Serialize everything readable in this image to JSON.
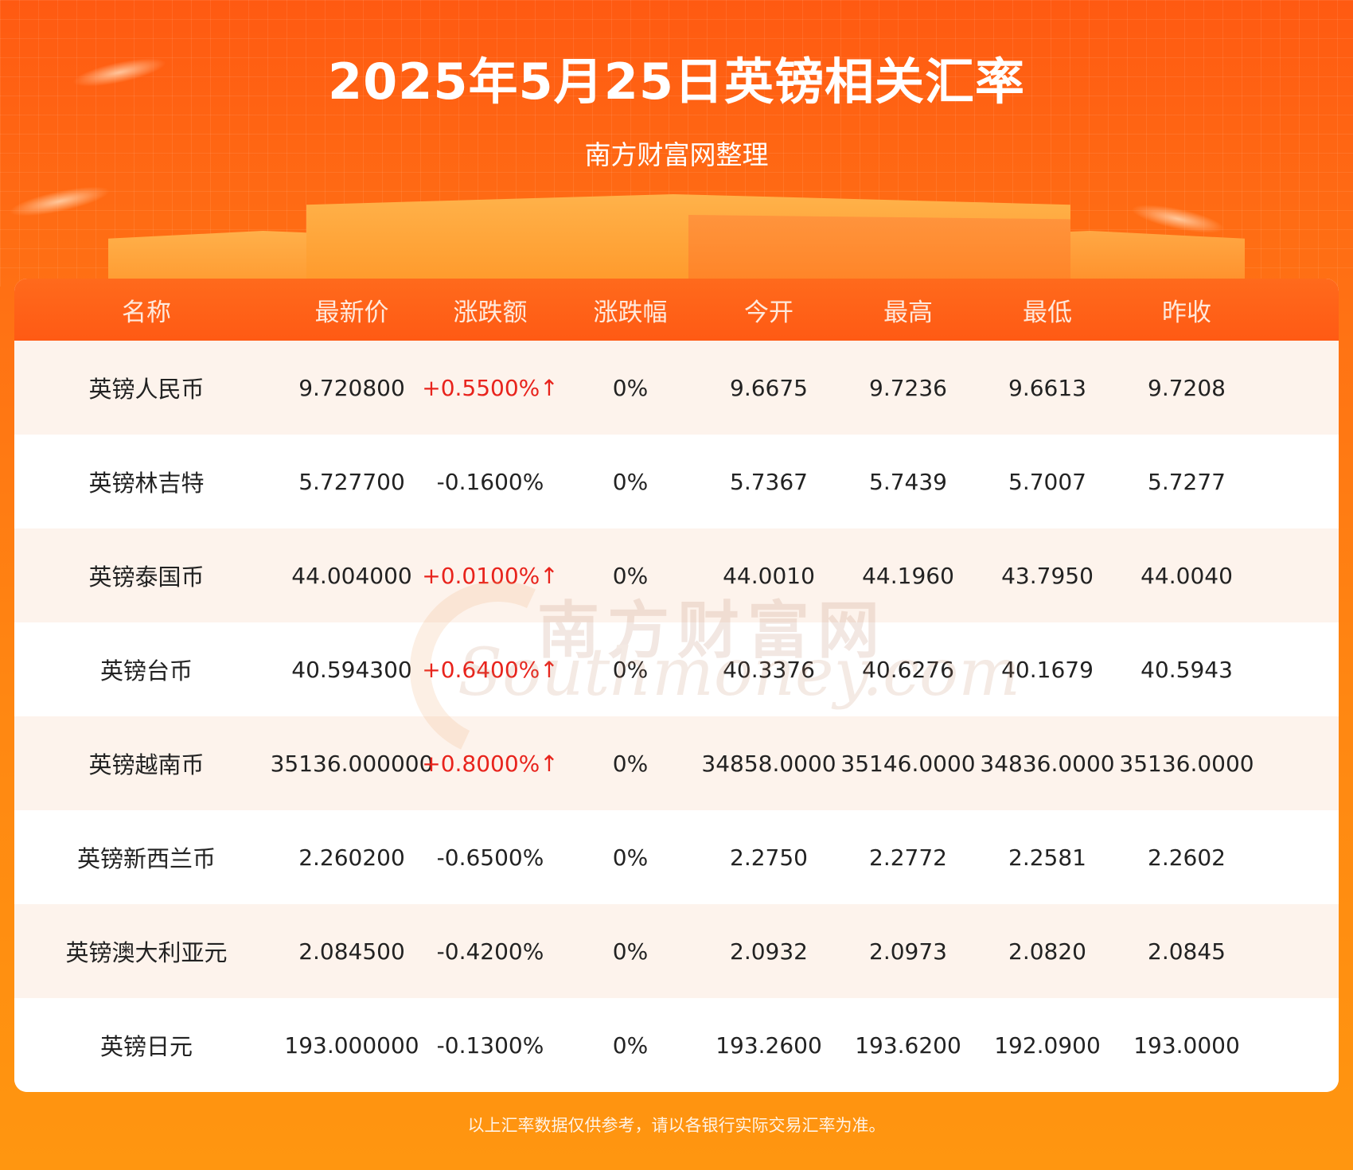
{
  "header": {
    "title": "2025年5月25日英镑相关汇率",
    "subtitle": "南方财富网整理"
  },
  "table": {
    "columns": [
      "名称",
      "最新价",
      "涨跌额",
      "涨跌幅",
      "今开",
      "最高",
      "最低",
      "昨收"
    ],
    "rows": [
      {
        "name": "英镑人民币",
        "latest": "9.720800",
        "change": "+0.5500%↑",
        "change_dir": "up",
        "pct": "0%",
        "open": "9.6675",
        "high": "9.7236",
        "low": "9.6613",
        "prev_close": "9.7208"
      },
      {
        "name": "英镑林吉特",
        "latest": "5.727700",
        "change": "-0.1600%",
        "change_dir": "down",
        "pct": "0%",
        "open": "5.7367",
        "high": "5.7439",
        "low": "5.7007",
        "prev_close": "5.7277"
      },
      {
        "name": "英镑泰国币",
        "latest": "44.004000",
        "change": "+0.0100%↑",
        "change_dir": "up",
        "pct": "0%",
        "open": "44.0010",
        "high": "44.1960",
        "low": "43.7950",
        "prev_close": "44.0040"
      },
      {
        "name": "英镑台币",
        "latest": "40.594300",
        "change": "+0.6400%↑",
        "change_dir": "up",
        "pct": "0%",
        "open": "40.3376",
        "high": "40.6276",
        "low": "40.1679",
        "prev_close": "40.5943"
      },
      {
        "name": "英镑越南币",
        "latest": "35136.000000",
        "change": "+0.8000%↑",
        "change_dir": "up",
        "pct": "0%",
        "open": "34858.0000",
        "high": "35146.0000",
        "low": "34836.0000",
        "prev_close": "35136.0000"
      },
      {
        "name": "英镑新西兰币",
        "latest": "2.260200",
        "change": "-0.6500%",
        "change_dir": "down",
        "pct": "0%",
        "open": "2.2750",
        "high": "2.2772",
        "low": "2.2581",
        "prev_close": "2.2602"
      },
      {
        "name": "英镑澳大利亚元",
        "latest": "2.084500",
        "change": "-0.4200%",
        "change_dir": "down",
        "pct": "0%",
        "open": "2.0932",
        "high": "2.0973",
        "low": "2.0820",
        "prev_close": "2.0845"
      },
      {
        "name": "英镑日元",
        "latest": "193.000000",
        "change": "-0.1300%",
        "change_dir": "down",
        "pct": "0%",
        "open": "193.2600",
        "high": "193.6200",
        "low": "192.0900",
        "prev_close": "193.0000"
      }
    ]
  },
  "watermark": {
    "cn": "南方财富网",
    "en": "Southmoney.com"
  },
  "footer": {
    "note": "以上汇率数据仅供参考，请以各银行实际交易汇率为准。"
  },
  "colors": {
    "accent": "#ff5a14",
    "up": "#e8231c",
    "row_alt": "#fdf3ec"
  }
}
